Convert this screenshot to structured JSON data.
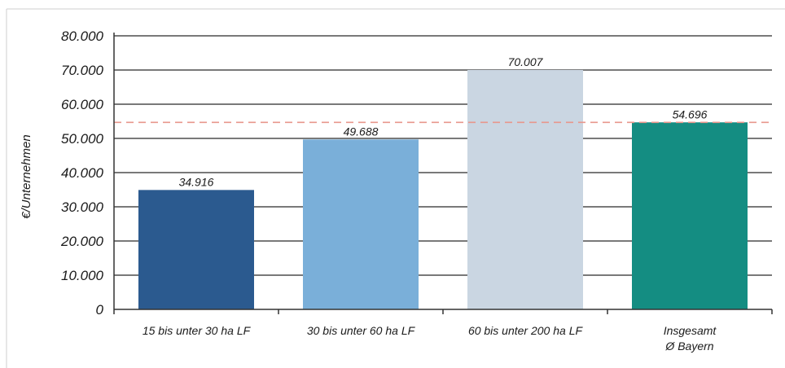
{
  "chart_data": {
    "type": "bar",
    "title": "",
    "xlabel": "",
    "ylabel": "€/Unternehmen",
    "ylim": [
      0,
      80000
    ],
    "yticks": [
      0,
      10000,
      20000,
      30000,
      40000,
      50000,
      60000,
      70000,
      80000
    ],
    "ytick_labels": [
      "0",
      "10.000",
      "20.000",
      "30.000",
      "40.000",
      "50.000",
      "60.000",
      "70.000",
      "80.000"
    ],
    "grid": true,
    "categories": [
      [
        "15 bis unter 30 ha LF"
      ],
      [
        "30 bis unter 60 ha LF"
      ],
      [
        "60 bis unter 200 ha LF"
      ],
      [
        "Insgesamt",
        "Ø Bayern"
      ]
    ],
    "values": [
      34916,
      49688,
      70007,
      54696
    ],
    "value_labels": [
      "34.916",
      "49.688",
      "70.007",
      "54.696"
    ],
    "bar_colors": [
      "#2b5a8f",
      "#7aafd9",
      "#cad6e2",
      "#148d82"
    ],
    "reference_line": {
      "value": 54696,
      "color": "#e8978c",
      "style": "dashed"
    }
  }
}
